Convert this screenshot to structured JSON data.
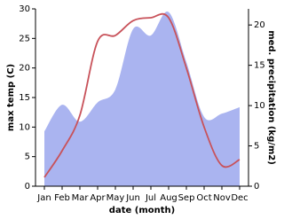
{
  "chart_data": {
    "type": "line-area",
    "x_label": "date (month)",
    "y_label": "max temp (C)",
    "y2_label": "med. precipitation (kg/m2)",
    "categories": [
      "Jan",
      "Feb",
      "Mar",
      "Apr",
      "May",
      "Jun",
      "Jul",
      "Aug",
      "Sep",
      "Oct",
      "Nov",
      "Dec"
    ],
    "series": [
      {
        "name": "max temp",
        "color": "#c8525a",
        "values": [
          1.5,
          6,
          12,
          24.5,
          25.5,
          28,
          28.5,
          28.5,
          20,
          10,
          3.5,
          4.5
        ]
      },
      {
        "name": "med. precipitation",
        "color": "#aab4f0",
        "axis": "y2",
        "values": [
          6.8,
          10.1,
          8,
          10.4,
          12,
          19.5,
          18.7,
          21.6,
          15.4,
          8.6,
          9,
          9.8
        ]
      }
    ],
    "ylim": [
      0,
      30
    ],
    "yticks": [
      0,
      5,
      10,
      15,
      20,
      25,
      30
    ],
    "y2lim": [
      0,
      22
    ],
    "y2ticks": [
      0,
      5,
      10,
      15,
      20
    ]
  }
}
